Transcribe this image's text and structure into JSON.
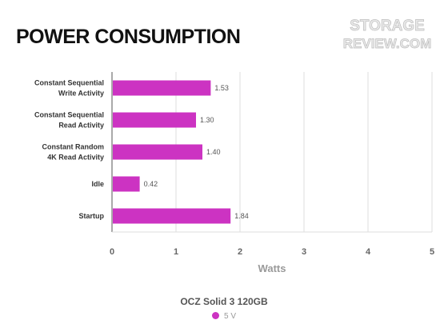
{
  "title": "POWER CONSUMPTION",
  "logo": {
    "line1": "STORAGE",
    "line2": "REVIEW.COM"
  },
  "chart_data": {
    "type": "bar",
    "orientation": "horizontal",
    "categories": [
      [
        "Constant Sequential",
        "Write Activity"
      ],
      [
        "Constant Sequential",
        "Read Activity"
      ],
      [
        "Constant Random",
        "4K Read Activity"
      ],
      [
        "Idle"
      ],
      [
        "Startup"
      ]
    ],
    "series": [
      {
        "name": "5 V",
        "values": [
          1.53,
          1.3,
          1.4,
          0.42,
          1.84
        ],
        "color": "#cc33c2"
      }
    ],
    "value_labels": [
      "1.53",
      "1.30",
      "1.40",
      "0.42",
      "1.84"
    ],
    "xlabel": "Watts",
    "xlim": [
      0,
      5
    ],
    "xticks": [
      "0",
      "1",
      "2",
      "3",
      "4",
      "5"
    ],
    "grid": true,
    "legend_title": "OCZ Solid 3 120GB",
    "legend_placement": "bottom"
  },
  "colors": {
    "bar": "#cc33c2",
    "grid": "#dddddd",
    "axis": "#555555"
  }
}
